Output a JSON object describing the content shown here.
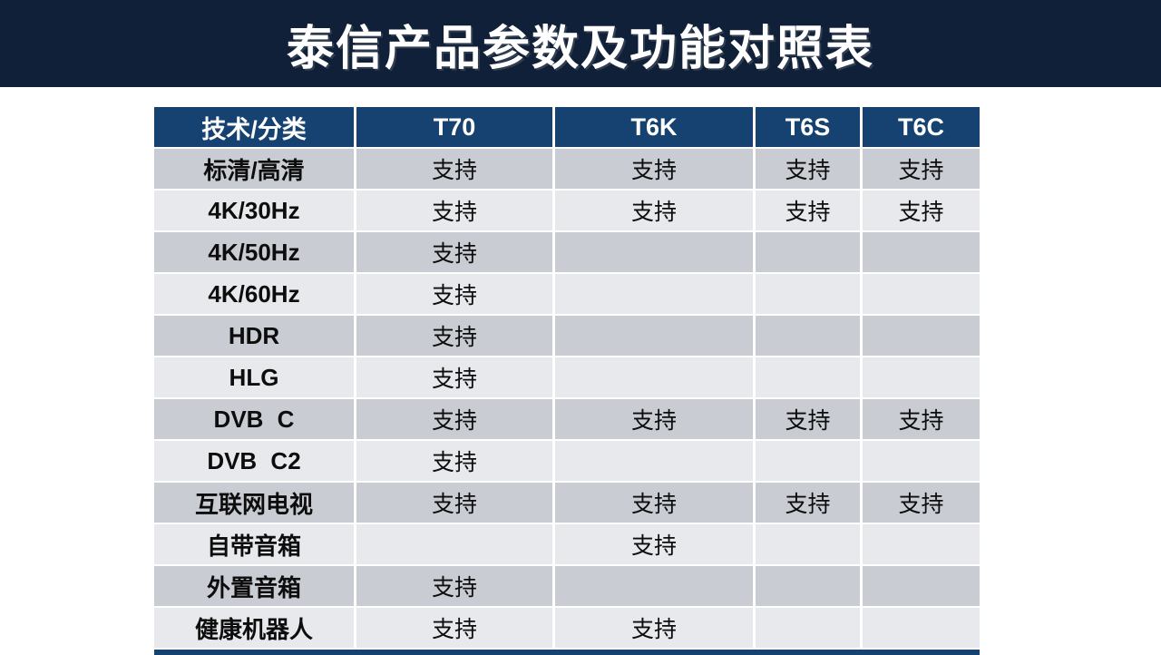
{
  "title": "泰信产品参数及功能对照表",
  "support_label": "支持",
  "colors": {
    "banner_background": "#0f2038",
    "table_header_background": "#164271",
    "row_dark": "#c9ccd2",
    "row_light": "#e7e9ec",
    "header_text": "#ffffff",
    "cell_text": "#0d0d0d"
  },
  "table": {
    "columns": [
      "技术/分类",
      "T70",
      "T6K",
      "T6S",
      "T6C"
    ],
    "rows": [
      {
        "label": "标清/高清",
        "values": [
          "支持",
          "支持",
          "支持",
          "支持"
        ]
      },
      {
        "label": "4K/30Hz",
        "values": [
          "支持",
          "支持",
          "支持",
          "支持"
        ]
      },
      {
        "label": "4K/50Hz",
        "values": [
          "支持",
          "",
          "",
          ""
        ]
      },
      {
        "label": "4K/60Hz",
        "values": [
          "支持",
          "",
          "",
          ""
        ]
      },
      {
        "label": "HDR",
        "values": [
          "支持",
          "",
          "",
          ""
        ]
      },
      {
        "label": "HLG",
        "values": [
          "支持",
          "",
          "",
          ""
        ]
      },
      {
        "label": "DVB C",
        "values": [
          "支持",
          "支持",
          "支持",
          "支持"
        ]
      },
      {
        "label": "DVB C2",
        "values": [
          "支持",
          "",
          "",
          ""
        ]
      },
      {
        "label": "互联网电视",
        "values": [
          "支持",
          "支持",
          "支持",
          "支持"
        ]
      },
      {
        "label": "自带音箱",
        "values": [
          "",
          "支持",
          "",
          ""
        ]
      },
      {
        "label": "外置音箱",
        "values": [
          "支持",
          "",
          "",
          ""
        ]
      },
      {
        "label": "健康机器人",
        "values": [
          "支持",
          "支持",
          "",
          ""
        ]
      }
    ]
  }
}
